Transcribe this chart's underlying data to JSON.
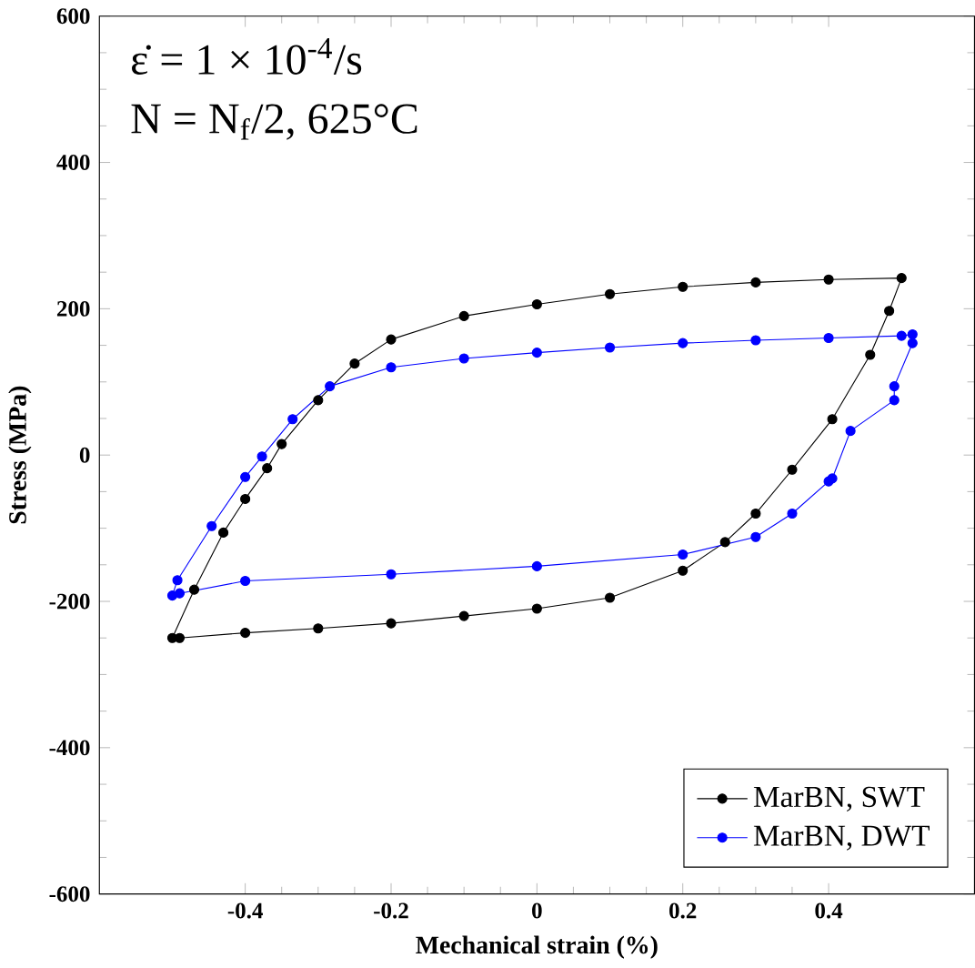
{
  "chart_data": {
    "type": "line",
    "xlabel": "Mechanical strain (%)",
    "ylabel": "Stress (MPa)",
    "annotations": [
      "ε̇ = 1 × 10$^{-4}$/s",
      "N = N$_{f}$/2, 625°C"
    ],
    "xlim": [
      -0.6,
      0.6
    ],
    "xticks": [
      -0.4,
      -0.2,
      0,
      0.2,
      0.4
    ],
    "ylim": [
      -600,
      600
    ],
    "yticks": [
      -600,
      -400,
      -200,
      0,
      200,
      400,
      600
    ],
    "grid": false,
    "legend": "bottom right",
    "marker": "circle",
    "line_style": "solid",
    "series": [
      {
        "name": "MarBN, SWT",
        "color": "#000000",
        "x": [
          -0.5,
          -0.47,
          -0.43,
          -0.4,
          -0.37,
          -0.35,
          -0.3,
          -0.25,
          -0.2,
          -0.1,
          0,
          0.1,
          0.2,
          0.3,
          0.4,
          0.5,
          0.483,
          0.457,
          0.405,
          0.35,
          0.3,
          0.258,
          0.2,
          0.1,
          0,
          -0.1,
          -0.2,
          -0.3,
          -0.4,
          -0.49
        ],
        "values": [
          -250,
          -184,
          -106,
          -60,
          -18,
          15,
          75,
          125,
          158,
          190,
          206,
          220,
          230,
          236,
          240,
          242,
          197,
          137,
          49,
          -20,
          -80,
          -119,
          -158,
          -195,
          -210,
          -220,
          -230,
          -237,
          -243,
          -250
        ]
      },
      {
        "name": "MarBN, DWT",
        "color": "#0000ff",
        "x": [
          -0.5,
          -0.493,
          -0.446,
          -0.4,
          -0.377,
          -0.335,
          -0.284,
          -0.2,
          -0.1,
          0,
          0.1,
          0.2,
          0.3,
          0.4,
          0.5,
          0.515,
          0.515,
          0.49,
          0.49,
          0.43,
          0.405,
          0.4,
          0.35,
          0.3,
          0.2,
          0,
          -0.2,
          -0.4,
          -0.49
        ],
        "values": [
          -192,
          -171,
          -97,
          -30,
          -2,
          49,
          94,
          120,
          132,
          140,
          147,
          153,
          157,
          160,
          163,
          165,
          153,
          94,
          75,
          33,
          -32,
          -36,
          -80,
          -112,
          -136,
          -152,
          -163,
          -172,
          -189
        ]
      }
    ]
  }
}
